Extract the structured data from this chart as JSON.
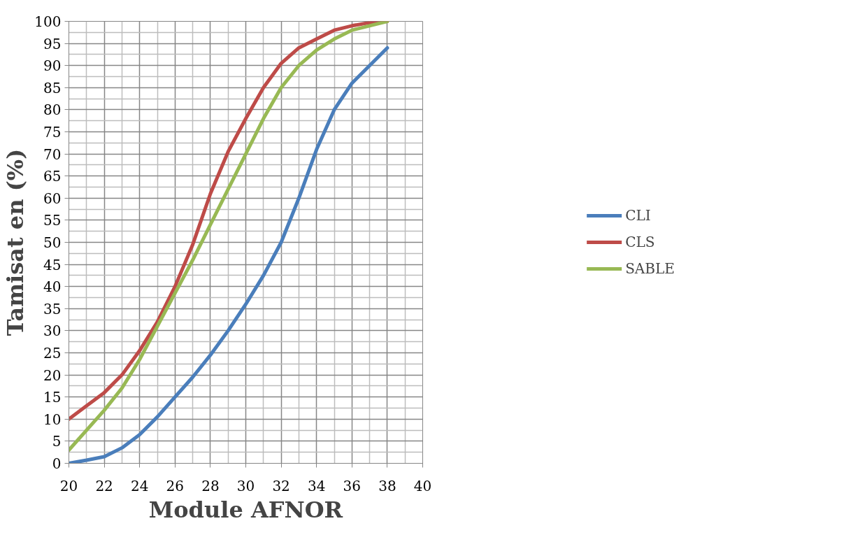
{
  "chart_data": {
    "type": "line",
    "xlabel": "Module AFNOR",
    "ylabel": "Tamisat en (%)",
    "x": [
      20,
      21,
      22,
      23,
      24,
      25,
      26,
      27,
      28,
      29,
      30,
      31,
      32,
      33,
      34,
      35,
      36,
      37,
      38
    ],
    "series": [
      {
        "name": "CLI",
        "color": "#4a7ebb",
        "values": [
          0,
          0.7,
          1.5,
          3.5,
          6.5,
          10.5,
          15,
          19.5,
          24.5,
          30,
          36,
          42.5,
          50,
          60,
          71,
          80,
          86,
          90,
          94
        ]
      },
      {
        "name": "CLS",
        "color": "#be4b48",
        "values": [
          10,
          13,
          16,
          20,
          25.5,
          32,
          40,
          49.5,
          61,
          70.5,
          78,
          85,
          90.5,
          94,
          96,
          98,
          99,
          99.7,
          100
        ]
      },
      {
        "name": "SABLE",
        "color": "#98b954",
        "values": [
          3,
          7.5,
          12,
          17,
          23.5,
          31,
          38.5,
          46,
          54,
          62,
          70,
          78,
          85,
          90,
          93.5,
          96,
          98,
          99,
          100
        ]
      }
    ],
    "xlim": [
      20,
      40
    ],
    "xticks": [
      20,
      22,
      24,
      26,
      28,
      30,
      32,
      34,
      36,
      38,
      40
    ],
    "ylim": [
      0,
      100
    ],
    "yticks": [
      0,
      5,
      10,
      15,
      20,
      25,
      30,
      35,
      40,
      45,
      50,
      55,
      60,
      65,
      70,
      75,
      80,
      85,
      90,
      95,
      100
    ],
    "grid": true,
    "legend": "right",
    "marker": "none",
    "line_style": "solid"
  }
}
